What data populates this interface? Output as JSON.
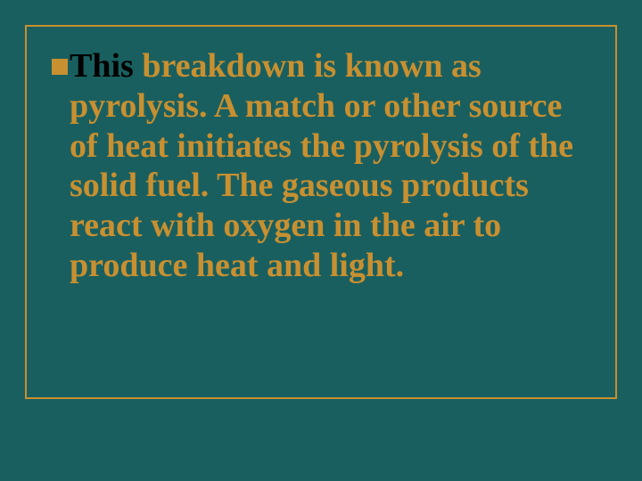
{
  "slide": {
    "background_color": "#1a5f5f",
    "border_color": "#c89030",
    "text_color": "#c89030",
    "leading_color": "#000000",
    "bullet_color": "#c89030",
    "font_family": "Georgia, 'Times New Roman', serif",
    "font_size": 38,
    "font_weight": "bold",
    "line_height": 1.18,
    "leading_text": "This",
    "body_text": " breakdown is known as pyrolysis. A match or other source of heat initiates the pyrolysis of the solid fuel. The gaseous products react with oxygen in the air to produce heat and light."
  }
}
